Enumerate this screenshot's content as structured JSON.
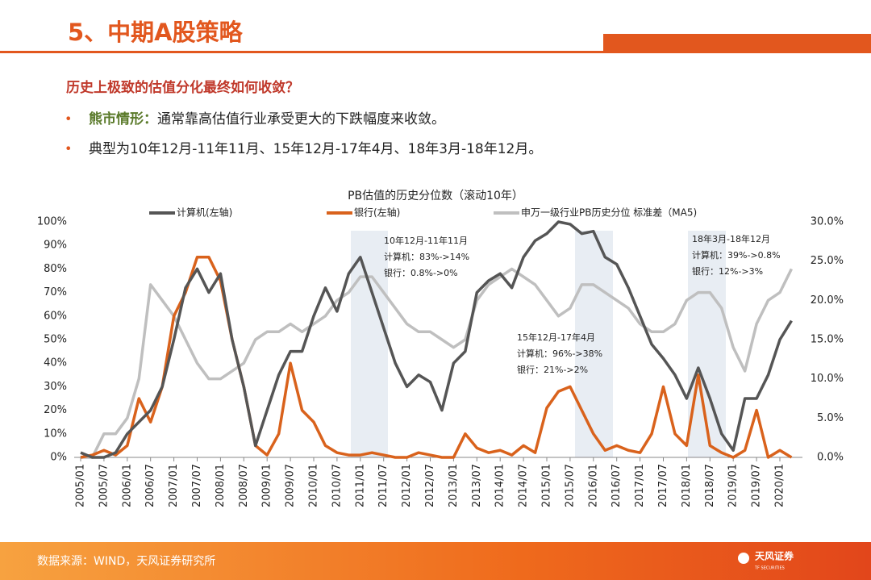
{
  "header": {
    "title": "5、中期A股策略",
    "subtitle": "历史上极致的估值分化最终如何收敛？"
  },
  "bullets": [
    {
      "label": "熊市情形：",
      "text": "通常靠高估值行业承受更大的下跌幅度来收敛。"
    },
    {
      "text": "典型为10年12月-11年11月、15年12月-17年4月、18年3月-18年12月。"
    }
  ],
  "footer": {
    "source": "数据来源：WIND，天风证券研究所",
    "logo": "天风证券",
    "logo_sub": "TF SECURITIES"
  },
  "chart_data": {
    "type": "line",
    "title": "PB估值的历史分位数（滚动10年）",
    "categories": [
      "2005/01",
      null,
      "2005/07",
      null,
      "2006/01",
      null,
      "2006/07",
      null,
      "2007/01",
      null,
      "2007/07",
      null,
      "2008/01",
      null,
      "2008/07",
      null,
      "2009/01",
      null,
      "2009/07",
      null,
      "2010/01",
      null,
      "2010/07",
      null,
      "2011/01",
      null,
      "2011/07",
      null,
      "2012/01",
      null,
      "2012/07",
      null,
      "2013/01",
      null,
      "2013/07",
      null,
      "2014/01",
      null,
      "2014/07",
      null,
      "2015/01",
      null,
      "2015/07",
      null,
      "2016/01",
      null,
      "2016/07",
      null,
      "2017/01",
      null,
      "2017/07",
      null,
      "2018/01",
      null,
      "2018/07",
      null,
      "2019/01",
      null,
      "2019/07",
      null,
      "2020/01",
      null
    ],
    "series": [
      {
        "name": "计算机(左轴)",
        "color": "#555555",
        "axis": "y",
        "values": [
          2,
          0,
          0,
          2,
          10,
          15,
          20,
          30,
          50,
          72,
          80,
          70,
          78,
          50,
          30,
          5,
          20,
          35,
          45,
          45,
          60,
          72,
          62,
          78,
          85,
          70,
          55,
          40,
          30,
          35,
          32,
          20,
          40,
          45,
          70,
          75,
          78,
          72,
          85,
          92,
          95,
          100,
          99,
          95,
          96,
          85,
          82,
          72,
          60,
          48,
          42,
          35,
          25,
          38,
          25,
          10,
          3,
          25,
          25,
          35,
          50,
          58
        ]
      },
      {
        "name": "银行(左轴)",
        "color": "#d9621c",
        "axis": "y",
        "values": [
          0,
          1,
          3,
          1,
          5,
          25,
          15,
          30,
          60,
          70,
          85,
          85,
          75,
          50,
          30,
          5,
          1,
          10,
          40,
          20,
          15,
          5,
          2,
          1,
          1,
          2,
          1,
          0,
          0,
          2,
          1,
          0,
          0,
          10,
          4,
          2,
          3,
          1,
          5,
          2,
          21,
          28,
          30,
          20,
          10,
          3,
          5,
          3,
          2,
          10,
          30,
          10,
          5,
          35,
          5,
          2,
          0,
          3,
          20,
          0,
          3,
          0
        ]
      },
      {
        "name": "申万一级行业PB历史分位 标准差（MA5)",
        "color": "#bfbfbf",
        "axis": "y2",
        "values": [
          0,
          0,
          3,
          3,
          5,
          10,
          22,
          20,
          18,
          15,
          12,
          10,
          10,
          11,
          12,
          15,
          16,
          16,
          17,
          16,
          17,
          18,
          20,
          21,
          23,
          23,
          21,
          19,
          17,
          16,
          16,
          15,
          14,
          15,
          20,
          22,
          23,
          24,
          23,
          22,
          20,
          18,
          19,
          22,
          22,
          21,
          20,
          19,
          17,
          16,
          16,
          17,
          20,
          21,
          21,
          19,
          14,
          11,
          17,
          20,
          21,
          24
        ]
      }
    ],
    "ylim": [
      0,
      100
    ],
    "yticks": [
      {
        "value": 0,
        "label": "0%"
      },
      {
        "value": 10,
        "label": "10%"
      },
      {
        "value": 20,
        "label": "20%"
      },
      {
        "value": 30,
        "label": "30%"
      },
      {
        "value": 40,
        "label": "40%"
      },
      {
        "value": 50,
        "label": "50%"
      },
      {
        "value": 60,
        "label": "60%"
      },
      {
        "value": 70,
        "label": "70%"
      },
      {
        "value": 80,
        "label": "80%"
      },
      {
        "value": 90,
        "label": "90%"
      },
      {
        "value": 100,
        "label": "100%"
      }
    ],
    "y2lim": [
      0,
      30
    ],
    "y2ticks": [
      {
        "value": 0,
        "label": "0.0%"
      },
      {
        "value": 5,
        "label": "5.0%"
      },
      {
        "value": 10,
        "label": "10.0%"
      },
      {
        "value": 15,
        "label": "15.0%"
      },
      {
        "value": 20,
        "label": "20.0%"
      },
      {
        "value": 25,
        "label": "25.0%"
      },
      {
        "value": 30,
        "label": "30.0%"
      }
    ],
    "annotations": [
      {
        "lines": [
          "10年12月-11年11月",
          "计算机：83%->14%",
          "银行：0.8%->0%"
        ]
      },
      {
        "lines": [
          "15年12月-17年4月",
          "计算机：96%->38%",
          "银行：21%->2%"
        ]
      },
      {
        "lines": [
          "18年3月-18年12月",
          "计算机：39%->0.8%",
          "银行：12%->3%"
        ]
      }
    ]
  }
}
